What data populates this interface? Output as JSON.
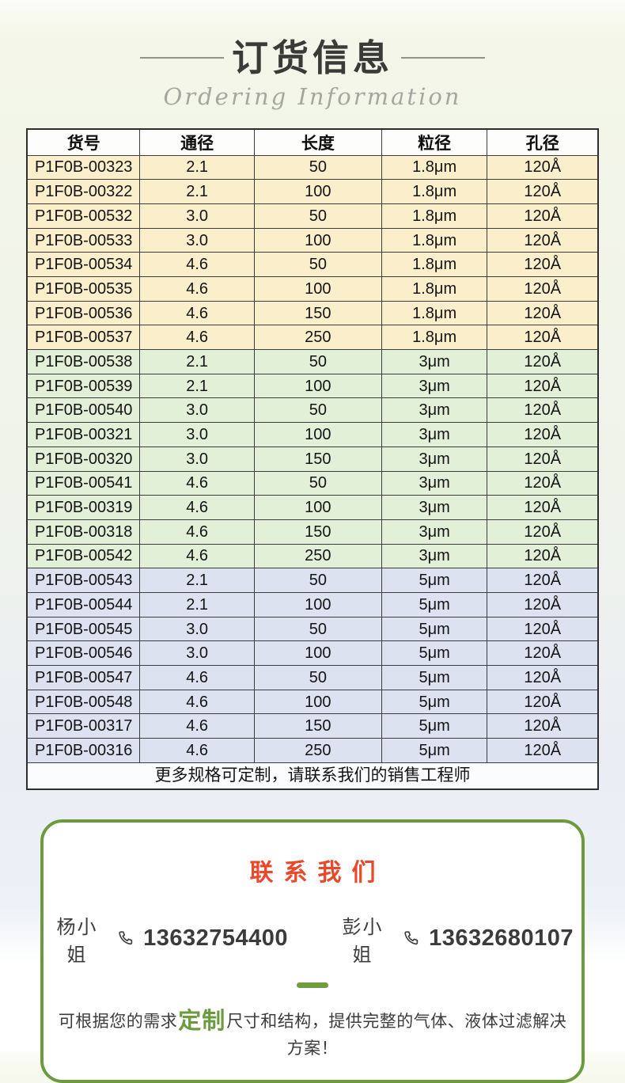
{
  "header": {
    "title": "订货信息",
    "subtitle": "Ordering Information"
  },
  "table": {
    "headers": [
      "货号",
      "通径",
      "长度",
      "粒径",
      "孔径"
    ],
    "row_groups": [
      {
        "group": "1.8um",
        "bg": "#fbeeca",
        "rows": [
          [
            "P1F0B-00323",
            "2.1",
            "50",
            "1.8μm",
            "120Å"
          ],
          [
            "P1F0B-00322",
            "2.1",
            "100",
            "1.8μm",
            "120Å"
          ],
          [
            "P1F0B-00532",
            "3.0",
            "50",
            "1.8μm",
            "120Å"
          ],
          [
            "P1F0B-00533",
            "3.0",
            "100",
            "1.8μm",
            "120Å"
          ],
          [
            "P1F0B-00534",
            "4.6",
            "50",
            "1.8μm",
            "120Å"
          ],
          [
            "P1F0B-00535",
            "4.6",
            "100",
            "1.8μm",
            "120Å"
          ],
          [
            "P1F0B-00536",
            "4.6",
            "150",
            "1.8μm",
            "120Å"
          ],
          [
            "P1F0B-00537",
            "4.6",
            "250",
            "1.8μm",
            "120Å"
          ]
        ]
      },
      {
        "group": "3um",
        "bg": "#e3f0d8",
        "rows": [
          [
            "P1F0B-00538",
            "2.1",
            "50",
            "3μm",
            "120Å"
          ],
          [
            "P1F0B-00539",
            "2.1",
            "100",
            "3μm",
            "120Å"
          ],
          [
            "P1F0B-00540",
            "3.0",
            "50",
            "3μm",
            "120Å"
          ],
          [
            "P1F0B-00321",
            "3.0",
            "100",
            "3μm",
            "120Å"
          ],
          [
            "P1F0B-00320",
            "3.0",
            "150",
            "3μm",
            "120Å"
          ],
          [
            "P1F0B-00541",
            "4.6",
            "50",
            "3μm",
            "120Å"
          ],
          [
            "P1F0B-00319",
            "4.6",
            "100",
            "3μm",
            "120Å"
          ],
          [
            "P1F0B-00318",
            "4.6",
            "150",
            "3μm",
            "120Å"
          ],
          [
            "P1F0B-00542",
            "4.6",
            "250",
            "3μm",
            "120Å"
          ]
        ]
      },
      {
        "group": "5um",
        "bg": "#dce2f0",
        "rows": [
          [
            "P1F0B-00543",
            "2.1",
            "50",
            "5μm",
            "120Å"
          ],
          [
            "P1F0B-00544",
            "2.1",
            "100",
            "5μm",
            "120Å"
          ],
          [
            "P1F0B-00545",
            "3.0",
            "50",
            "5μm",
            "120Å"
          ],
          [
            "P1F0B-00546",
            "3.0",
            "100",
            "5μm",
            "120Å"
          ],
          [
            "P1F0B-00547",
            "4.6",
            "50",
            "5μm",
            "120Å"
          ],
          [
            "P1F0B-00548",
            "4.6",
            "100",
            "5μm",
            "120Å"
          ],
          [
            "P1F0B-00317",
            "4.6",
            "150",
            "5μm",
            "120Å"
          ],
          [
            "P1F0B-00316",
            "4.6",
            "250",
            "5μm",
            "120Å"
          ]
        ]
      }
    ],
    "footer_note": "更多规格可定制，请联系我们的销售工程师"
  },
  "contact": {
    "title": "联系我们",
    "persons": [
      {
        "name": "杨小姐",
        "phone": "13632754400",
        "icon": "phone-icon"
      },
      {
        "name": "彭小姐",
        "phone": "13632680107",
        "icon": "phone-icon"
      }
    ],
    "note": {
      "prefix": "可根据您的需求",
      "highlight": "定制",
      "suffix": "尺寸和结构，提供完整的气体、液体过滤解决方案！"
    }
  },
  "colors": {
    "accent_green": "#6b9b3e",
    "accent_red": "#e8492c",
    "row_yellow": "#fbeeca",
    "row_green": "#e3f0d8",
    "row_blue": "#dce2f0",
    "table_border": "#3d3d3d"
  }
}
